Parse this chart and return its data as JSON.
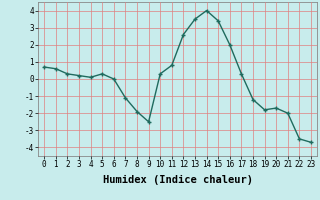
{
  "x": [
    0,
    1,
    2,
    3,
    4,
    5,
    6,
    7,
    8,
    9,
    10,
    11,
    12,
    13,
    14,
    15,
    16,
    17,
    18,
    19,
    20,
    21,
    22,
    23
  ],
  "y": [
    0.7,
    0.6,
    0.3,
    0.2,
    0.1,
    0.3,
    0.0,
    -1.1,
    -1.9,
    -2.5,
    0.3,
    0.8,
    2.6,
    3.5,
    4.0,
    3.4,
    2.0,
    0.3,
    -1.2,
    -1.8,
    -1.7,
    -2.0,
    -3.5,
    -3.7
  ],
  "line_color": "#1f6b5e",
  "marker": "+",
  "marker_size": 3.5,
  "marker_lw": 1.0,
  "line_width": 1.0,
  "bg_color": "#c8ecec",
  "grid_color": "#e08080",
  "grid_lw": 0.5,
  "xlabel": "Humidex (Indice chaleur)",
  "xlim": [
    -0.5,
    23.5
  ],
  "ylim": [
    -4.5,
    4.5
  ],
  "yticks": [
    -4,
    -3,
    -2,
    -1,
    0,
    1,
    2,
    3,
    4
  ],
  "xtick_labels": [
    "0",
    "1",
    "2",
    "3",
    "4",
    "5",
    "6",
    "7",
    "8",
    "9",
    "10",
    "11",
    "12",
    "13",
    "14",
    "15",
    "16",
    "17",
    "18",
    "19",
    "20",
    "21",
    "22",
    "23"
  ],
  "tick_fontsize": 5.5,
  "xlabel_fontsize": 7.5,
  "xlabel_fontweight": "bold"
}
